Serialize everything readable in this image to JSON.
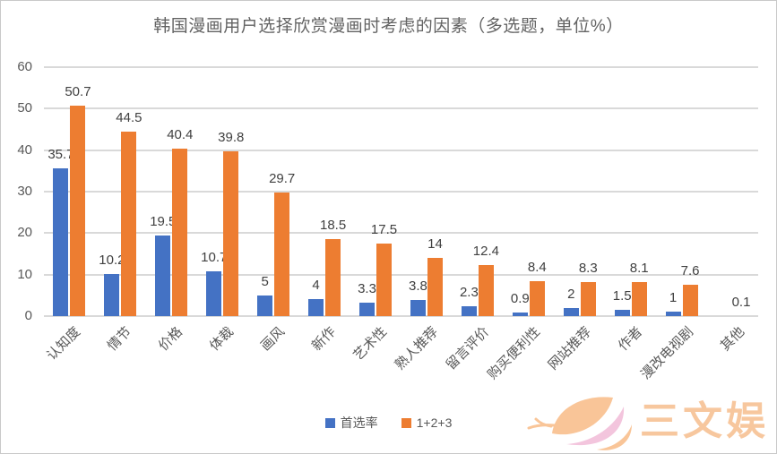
{
  "chart_data": {
    "type": "bar",
    "title": "韩国漫画用户选择欣赏漫画时考虑的因素（多选题，单位%）",
    "categories": [
      "认知度",
      "情节",
      "价格",
      "体裁",
      "画风",
      "新作",
      "艺术性",
      "熟人推荐",
      "留言评价",
      "购买便利性",
      "网站推荐",
      "作者",
      "漫改电视剧",
      "其他"
    ],
    "series": [
      {
        "name": "首选率",
        "color": "#4472C4",
        "values": [
          35.7,
          10.2,
          19.5,
          10.7,
          5,
          4,
          3.3,
          3.8,
          2.3,
          0.9,
          2,
          1.5,
          1,
          null
        ]
      },
      {
        "name": "1+2+3",
        "color": "#ED7D31",
        "values": [
          50.7,
          44.5,
          40.4,
          39.8,
          29.7,
          18.5,
          17.5,
          14,
          12.4,
          8.4,
          8.3,
          8.1,
          7.6,
          0.1
        ]
      }
    ],
    "ylim": [
      0,
      60
    ],
    "ytick_step": 10,
    "yticks": [
      0,
      10,
      20,
      30,
      40,
      50,
      60
    ],
    "grid": true,
    "gridline_color": "#d9d9d9",
    "legend_position": "bottom",
    "data_labels": true
  },
  "watermark": {
    "text": "三文娱",
    "logo": "salmon-leaf-logo",
    "text_color": "#F7C79E",
    "leaf_orange": "#F9C598",
    "leaf_pink": "#F3C5DD"
  }
}
